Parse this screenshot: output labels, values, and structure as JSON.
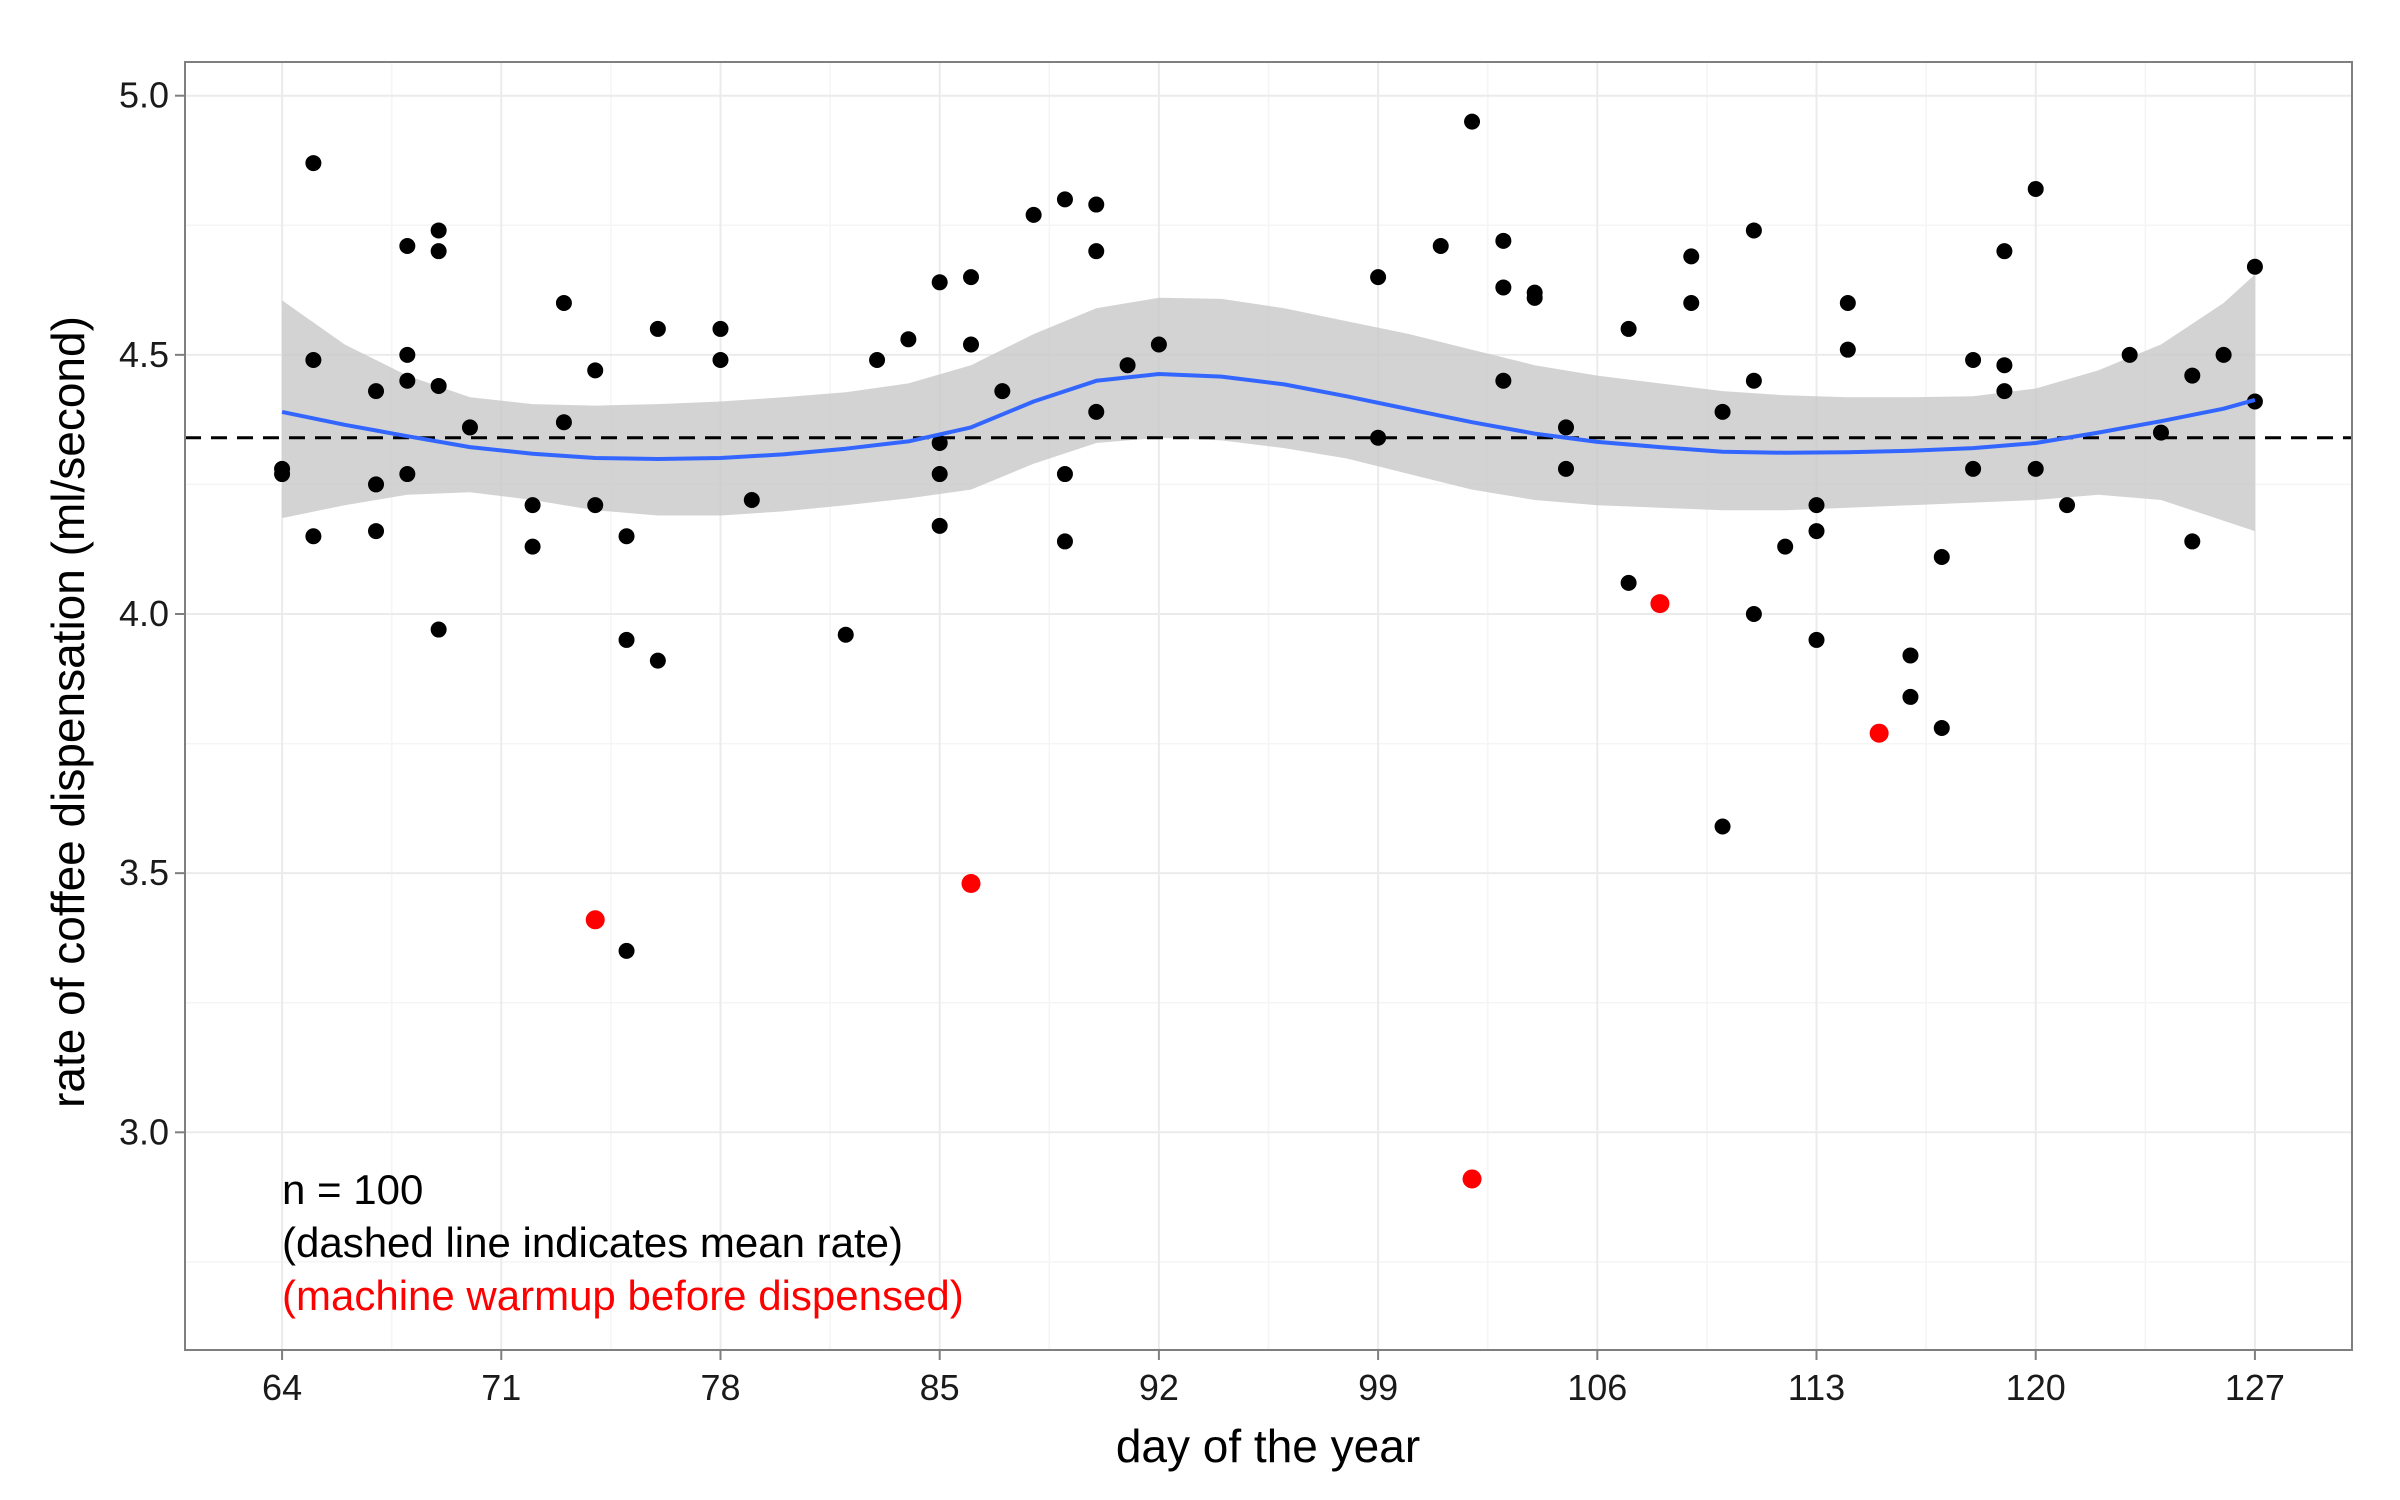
{
  "chart_data": {
    "type": "scatter",
    "xlabel": "day of the year",
    "ylabel": "rate of coffee dispensation (ml/second)",
    "xlim": [
      60.9,
      130.1
    ],
    "ylim": [
      2.58,
      5.065
    ],
    "x_ticks": [
      64,
      71,
      78,
      85,
      92,
      99,
      106,
      113,
      120,
      127
    ],
    "y_ticks": [
      3.0,
      3.5,
      4.0,
      4.5,
      5.0
    ],
    "y_tick_labels": [
      "3.0",
      "3.5",
      "4.0",
      "4.5",
      "5.0"
    ],
    "x_minor_ticks": [
      67.5,
      74.5,
      81.5,
      88.5,
      95.5,
      102.5,
      109.5,
      116.5,
      123.5
    ],
    "y_minor_ticks": [
      2.75,
      3.25,
      3.75,
      4.25,
      4.75
    ],
    "grid": true,
    "colors": {
      "panel_border": "#7f7f7f",
      "grid_major": "#ebebeb",
      "grid_minor": "#f5f5f5",
      "point": "#000000",
      "point_warmup": "#ff0000",
      "smooth_line": "#3366ff",
      "ribbon": "#c8c8c8",
      "mean_line": "#000000"
    },
    "mean_rate": 4.34,
    "series": [
      {
        "values": [
          [
            64,
            4.28
          ],
          [
            64,
            4.27
          ],
          [
            65,
            4.87
          ],
          [
            65,
            4.49
          ],
          [
            65,
            4.15
          ],
          [
            67,
            4.43
          ],
          [
            67,
            4.25
          ],
          [
            67,
            4.16
          ],
          [
            68,
            4.71
          ],
          [
            68,
            4.5
          ],
          [
            68,
            4.45
          ],
          [
            68,
            4.27
          ],
          [
            69,
            4.74
          ],
          [
            69,
            4.7
          ],
          [
            69,
            4.44
          ],
          [
            69,
            3.97
          ],
          [
            70,
            4.36
          ],
          [
            72,
            4.21
          ],
          [
            72,
            4.13
          ],
          [
            73,
            4.6
          ],
          [
            73,
            4.37
          ],
          [
            74,
            4.47
          ],
          [
            74,
            4.21
          ],
          [
            75,
            4.15
          ],
          [
            75,
            3.95
          ],
          [
            75,
            3.35
          ],
          [
            76,
            4.55
          ],
          [
            76,
            3.91
          ],
          [
            78,
            4.55
          ],
          [
            78,
            4.49
          ],
          [
            79,
            4.22
          ],
          [
            82,
            3.96
          ],
          [
            83,
            4.49
          ],
          [
            84,
            4.53
          ],
          [
            85,
            4.64
          ],
          [
            85,
            4.33
          ],
          [
            85,
            4.27
          ],
          [
            85,
            4.17
          ],
          [
            86,
            4.65
          ],
          [
            86,
            4.52
          ],
          [
            87,
            4.43
          ],
          [
            88,
            4.77
          ],
          [
            89,
            4.8
          ],
          [
            89,
            4.27
          ],
          [
            89,
            4.14
          ],
          [
            90,
            4.79
          ],
          [
            90,
            4.7
          ],
          [
            90,
            4.39
          ],
          [
            91,
            4.48
          ],
          [
            92,
            4.52
          ],
          [
            99,
            4.65
          ],
          [
            99,
            4.34
          ],
          [
            101,
            4.71
          ],
          [
            102,
            4.95
          ],
          [
            103,
            4.72
          ],
          [
            103,
            4.63
          ],
          [
            103,
            4.45
          ],
          [
            104,
            4.62
          ],
          [
            104,
            4.61
          ],
          [
            105,
            4.36
          ],
          [
            105,
            4.28
          ],
          [
            107,
            4.55
          ],
          [
            107,
            4.06
          ],
          [
            109,
            4.69
          ],
          [
            109,
            4.6
          ],
          [
            110,
            4.39
          ],
          [
            110,
            3.59
          ],
          [
            111,
            4.74
          ],
          [
            111,
            4.45
          ],
          [
            111,
            4.0
          ],
          [
            112,
            4.13
          ],
          [
            113,
            4.21
          ],
          [
            113,
            4.16
          ],
          [
            113,
            3.95
          ],
          [
            114,
            4.6
          ],
          [
            114,
            4.51
          ],
          [
            116,
            3.92
          ],
          [
            116,
            3.84
          ],
          [
            117,
            4.11
          ],
          [
            117,
            3.78
          ],
          [
            118,
            4.49
          ],
          [
            118,
            4.28
          ],
          [
            119,
            4.7
          ],
          [
            119,
            4.48
          ],
          [
            119,
            4.43
          ],
          [
            120,
            4.82
          ],
          [
            120,
            4.28
          ],
          [
            121,
            4.21
          ],
          [
            123,
            4.5
          ],
          [
            124,
            4.35
          ],
          [
            125,
            4.46
          ],
          [
            125,
            4.14
          ],
          [
            126,
            4.5
          ],
          [
            127,
            4.67
          ],
          [
            127,
            4.41
          ]
        ]
      },
      {
        "values": [
          [
            74,
            3.41
          ],
          [
            86,
            3.48
          ],
          [
            102,
            2.91
          ],
          [
            108,
            4.02
          ],
          [
            115,
            3.77
          ]
        ]
      }
    ],
    "smooth_fit": {
      "x": [
        64,
        66,
        68,
        70,
        72,
        74,
        76,
        78,
        80,
        82,
        84,
        86,
        88,
        90,
        92,
        94,
        96,
        98,
        100,
        102,
        104,
        106,
        108,
        110,
        112,
        114,
        116,
        118,
        120,
        122,
        124,
        126,
        127
      ],
      "y": [
        4.39,
        4.365,
        4.343,
        4.322,
        4.309,
        4.301,
        4.299,
        4.301,
        4.308,
        4.319,
        4.333,
        4.36,
        4.41,
        4.45,
        4.463,
        4.458,
        4.443,
        4.42,
        4.395,
        4.37,
        4.348,
        4.332,
        4.322,
        4.313,
        4.311,
        4.312,
        4.315,
        4.32,
        4.33,
        4.35,
        4.372,
        4.396,
        4.413
      ],
      "lower": [
        4.185,
        4.21,
        4.23,
        4.235,
        4.22,
        4.2,
        4.19,
        4.19,
        4.198,
        4.21,
        4.223,
        4.24,
        4.29,
        4.33,
        4.34,
        4.335,
        4.32,
        4.3,
        4.27,
        4.24,
        4.22,
        4.21,
        4.205,
        4.2,
        4.2,
        4.205,
        4.21,
        4.215,
        4.22,
        4.23,
        4.22,
        4.18,
        4.16
      ],
      "upper": [
        4.605,
        4.52,
        4.46,
        4.418,
        4.405,
        4.402,
        4.405,
        4.41,
        4.418,
        4.428,
        4.445,
        4.48,
        4.54,
        4.59,
        4.61,
        4.608,
        4.59,
        4.565,
        4.54,
        4.51,
        4.48,
        4.46,
        4.445,
        4.43,
        4.422,
        4.418,
        4.418,
        4.42,
        4.435,
        4.47,
        4.52,
        4.6,
        4.655
      ]
    },
    "annotations": [
      {
        "text": "n = 100",
        "color": "#000000"
      },
      {
        "text": "(dashed line indicates mean rate)",
        "color": "#000000"
      },
      {
        "text": "(machine warmup before dispensed)",
        "color": "#ff0000"
      }
    ]
  }
}
